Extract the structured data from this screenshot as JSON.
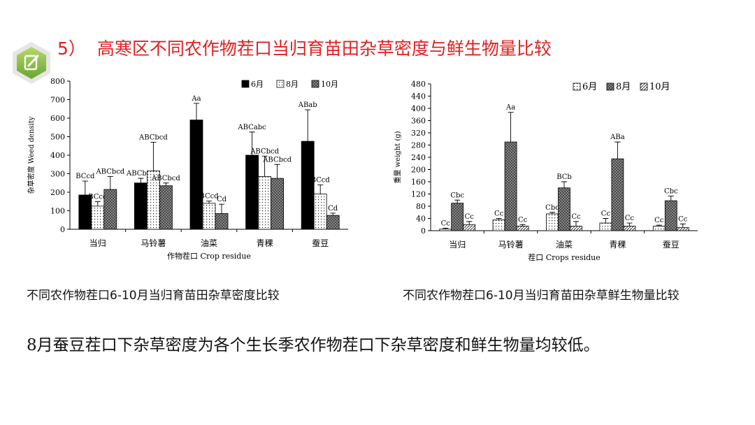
{
  "slide": {
    "title_number": "5）",
    "title": "高寒区不同农作物茬口当归育苗田杂草密度与鲜生物量比较",
    "logo_icon": "edit-note-icon",
    "caption_left": "不同农作物茬口6-10月当归育苗田杂草密度比较",
    "caption_right": "不同农作物茬口6-10月当归育苗田杂草鲜生物量比较",
    "conclusion": "8月蚕豆茬口下杂草密度为各个生长季农作物茬口下杂草密度和鲜生物量均较低。"
  },
  "chart_data": [
    {
      "type": "bar",
      "xlabel": "作物茬口 Crop residue",
      "ylabel": "杂草密度 Weed density",
      "categories": [
        "当归",
        "马铃薯",
        "油菜",
        "青稞",
        "蚕豆"
      ],
      "ylim": [
        0,
        800
      ],
      "yticks": [
        0,
        100,
        200,
        300,
        400,
        500,
        600,
        700,
        800
      ],
      "legend": "top-right",
      "series": [
        {
          "name": "6月",
          "pattern": "solid-black",
          "values": [
            185,
            250,
            590,
            400,
            475
          ],
          "errors": [
            75,
            25,
            90,
            125,
            170
          ],
          "labels": [
            "BCcd",
            "ABCbcd",
            "Aa",
            "ABCabc",
            "ABab"
          ]
        },
        {
          "name": "8月",
          "pattern": "dots",
          "values": [
            125,
            315,
            140,
            285,
            190
          ],
          "errors": [
            25,
            155,
            12,
            110,
            50
          ],
          "labels": [
            "BCcd",
            "ABCbcd",
            "BCcd",
            "ABCbcd",
            "BCcd"
          ]
        },
        {
          "name": "10月",
          "pattern": "crosshatch",
          "values": [
            215,
            235,
            85,
            275,
            75
          ],
          "errors": [
            70,
            15,
            50,
            75,
            12
          ],
          "labels": [
            "ABCbcd",
            "ABCbcd",
            "Cd",
            "ABCbcd",
            "Cd"
          ]
        }
      ]
    },
    {
      "type": "bar",
      "xlabel": "茬口 Crops residue",
      "ylabel": "重量 weight (g)",
      "categories": [
        "当归",
        "马铃薯",
        "油菜",
        "青稞",
        "蚕豆"
      ],
      "ylim": [
        0,
        480
      ],
      "yticks": [
        0,
        40,
        80,
        120,
        160,
        200,
        240,
        280,
        320,
        360,
        400,
        440,
        480
      ],
      "legend": "top-right",
      "series": [
        {
          "name": "6月",
          "pattern": "dots",
          "values": [
            5,
            35,
            55,
            25,
            15
          ],
          "errors": [
            3,
            5,
            5,
            15,
            3
          ],
          "labels": [
            "Cc",
            "Cc",
            "Cbc",
            "Cc",
            "Cc"
          ]
        },
        {
          "name": "8月",
          "pattern": "crosshatch",
          "values": [
            90,
            290,
            140,
            235,
            98
          ],
          "errors": [
            10,
            97,
            20,
            55,
            15
          ],
          "labels": [
            "Cbc",
            "Aa",
            "BCb",
            "ABa",
            "Cbc"
          ]
        },
        {
          "name": "10月",
          "pattern": "diagonal",
          "values": [
            20,
            15,
            15,
            15,
            10
          ],
          "errors": [
            10,
            5,
            15,
            10,
            12
          ],
          "labels": [
            "Cc",
            "Cc",
            "Cc",
            "Cc",
            "Cc"
          ]
        }
      ]
    }
  ]
}
